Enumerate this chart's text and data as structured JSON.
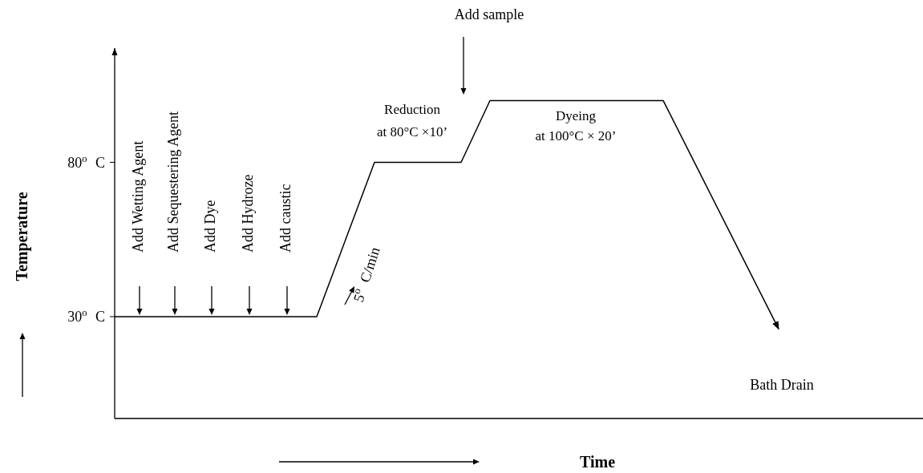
{
  "chart_data": {
    "type": "line",
    "xlabel": "Time",
    "ylabel": "Temperature",
    "categories": [
      null,
      null,
      null,
      null,
      null,
      null,
      null,
      null,
      null,
      null,
      null,
      null,
      null,
      null,
      null,
      null,
      null,
      null,
      null,
      null,
      null,
      null,
      null,
      null,
      null,
      null,
      null,
      null,
      null
    ],
    "series": [
      {
        "color": "#000000",
        "values": [
          30,
          30,
          30,
          30,
          30,
          30,
          30,
          30,
          55,
          80,
          80,
          80,
          80,
          100,
          100,
          100,
          100,
          100,
          100,
          100,
          81.5,
          63,
          44.5,
          26,
          null,
          null,
          null,
          null,
          null
        ]
      }
    ],
    "ylim": [
      -3,
      117
    ],
    "yticks": [
      {
        "value": 30,
        "label": "30$^{o}$ C"
      },
      {
        "value": 80,
        "label": "80$^{o}$ C"
      }
    ],
    "annotations": [
      "Add Wetting Agent",
      "Add Sequestering Agent",
      "Add Dye",
      "Add Hydroze",
      "Add caustic",
      "5$^{o}$ C/min",
      "Reduction",
      "at 80°C ×10’",
      "Dyeing",
      "at 100°C × 20’",
      "Add sample",
      "Bath Drain"
    ]
  }
}
